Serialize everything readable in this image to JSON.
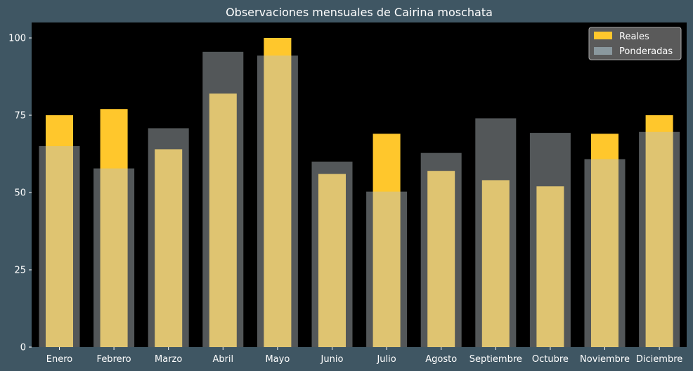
{
  "chart_data": {
    "type": "bar",
    "title": "Observaciones mensuales de Cairina moschata",
    "categories": [
      "Enero",
      "Febrero",
      "Marzo",
      "Abril",
      "Mayo",
      "Junio",
      "Julio",
      "Agosto",
      "Septiembre",
      "Octubre",
      "Noviembre",
      "Diciembre"
    ],
    "series": [
      {
        "name": "Reales",
        "color": "#ffc72c",
        "values": [
          75,
          77,
          64,
          82,
          100,
          56,
          69,
          57,
          54,
          52,
          69,
          75
        ]
      },
      {
        "name": "Ponderadas",
        "color": "#b7c2c6",
        "opacity": 0.45,
        "values": [
          65,
          57.8,
          70.8,
          95.5,
          94.3,
          60,
          50.3,
          62.8,
          74,
          69.3,
          60.8,
          69.6
        ]
      }
    ],
    "xlabel": "",
    "ylabel": "",
    "ylim": [
      0,
      105
    ],
    "yticks": [
      0,
      25,
      50,
      75,
      100
    ],
    "legend_position": "top-right",
    "background": "#000000",
    "figure_background": "#3f5663"
  }
}
